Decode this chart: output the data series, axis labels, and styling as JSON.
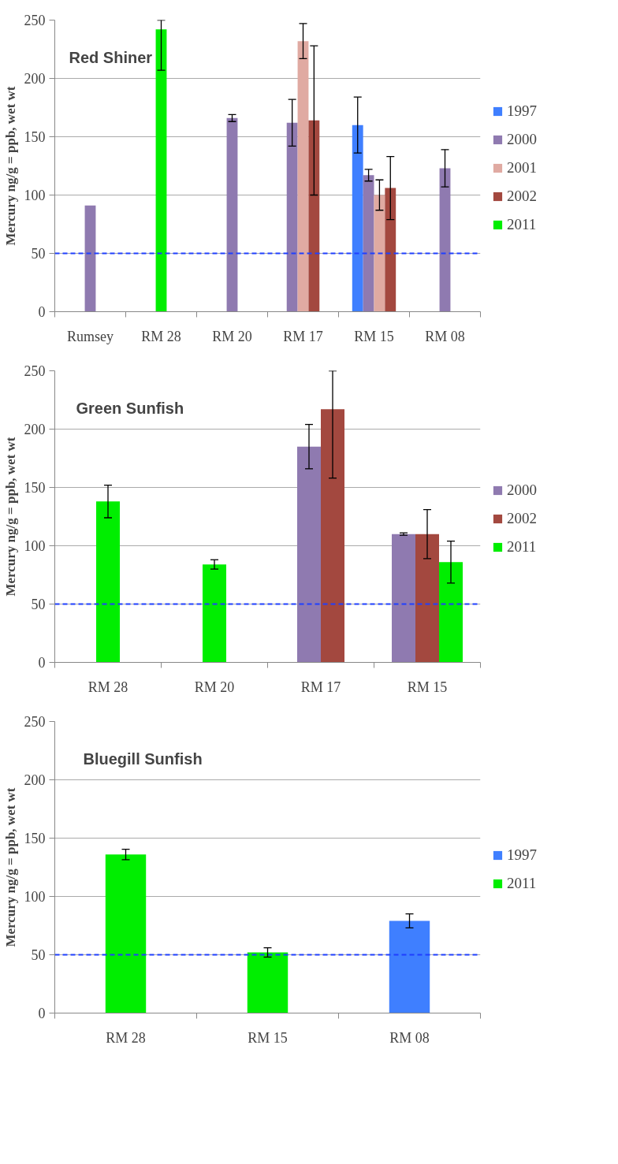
{
  "chart_data": [
    {
      "type": "bar",
      "title": "Red Shiner",
      "ylabel": "Mercury ng/g = ppb, wet wt",
      "categories": [
        "Rumsey",
        "RM 28",
        "RM 20",
        "RM 17",
        "RM 15",
        "RM 08"
      ],
      "series": [
        {
          "name": "1997",
          "color": "#3f7fff",
          "values": [
            null,
            null,
            null,
            null,
            160,
            null
          ],
          "errors": [
            null,
            null,
            null,
            null,
            24,
            null
          ]
        },
        {
          "name": "2000",
          "color": "#8f7ab0",
          "values": [
            91,
            null,
            166,
            162,
            117,
            123
          ],
          "errors": [
            null,
            null,
            3,
            20,
            5,
            16
          ]
        },
        {
          "name": "2001",
          "color": "#e0aaa2",
          "values": [
            null,
            null,
            null,
            232,
            100,
            null
          ],
          "errors": [
            null,
            null,
            null,
            15,
            13,
            null
          ]
        },
        {
          "name": "2002",
          "color": "#a3483f",
          "values": [
            null,
            null,
            null,
            164,
            106,
            null
          ],
          "errors": [
            null,
            null,
            null,
            64,
            27,
            null
          ]
        },
        {
          "name": "2011",
          "color": "#00ee00",
          "values": [
            null,
            242,
            null,
            null,
            null,
            null
          ],
          "errors": [
            null,
            [
              207,
              250
            ],
            null,
            null,
            null,
            null
          ]
        }
      ],
      "ylim": [
        0,
        250
      ],
      "yticks": [
        0,
        50,
        100,
        150,
        200,
        250
      ],
      "grid": "y",
      "legend": "right",
      "ref_lines": [
        {
          "axis": "y",
          "value": 50,
          "color": "#1f3fff",
          "line_style": "dashed"
        }
      ]
    },
    {
      "type": "bar",
      "title": "Green Sunfish",
      "ylabel": "Mercury ng/g = ppb, wet wt",
      "categories": [
        "RM 28",
        "RM 20",
        "RM 17",
        "RM 15"
      ],
      "series": [
        {
          "name": "2000",
          "color": "#8f7ab0",
          "values": [
            null,
            null,
            185,
            110
          ],
          "errors": [
            null,
            null,
            19,
            1
          ]
        },
        {
          "name": "2002",
          "color": "#a3483f",
          "values": [
            null,
            null,
            217,
            110
          ],
          "errors": [
            null,
            null,
            [
              158,
              250
            ],
            21
          ]
        },
        {
          "name": "2011",
          "color": "#00ee00",
          "values": [
            138,
            84,
            null,
            86
          ],
          "errors": [
            14,
            4,
            null,
            18
          ]
        }
      ],
      "ylim": [
        0,
        250
      ],
      "yticks": [
        0,
        50,
        100,
        150,
        200,
        250
      ],
      "grid": "y",
      "legend": "right",
      "ref_lines": [
        {
          "axis": "y",
          "value": 50,
          "color": "#1f3fff",
          "line_style": "dashed"
        }
      ]
    },
    {
      "type": "bar",
      "title": "Bluegill Sunfish",
      "ylabel": "Mercury ng/g = ppb, wet wt",
      "categories": [
        "RM 28",
        "RM 15",
        "RM 08"
      ],
      "series": [
        {
          "name": "1997",
          "color": "#3f7fff",
          "values": [
            null,
            null,
            79
          ],
          "errors": [
            null,
            null,
            6
          ]
        },
        {
          "name": "2011",
          "color": "#00ee00",
          "values": [
            136,
            52,
            null
          ],
          "errors": [
            4.5,
            4,
            null
          ]
        }
      ],
      "ylim": [
        0,
        250
      ],
      "yticks": [
        0,
        50,
        100,
        150,
        200,
        250
      ],
      "grid": "y",
      "legend": "right",
      "ref_lines": [
        {
          "axis": "y",
          "value": 50,
          "color": "#1f3fff",
          "line_style": "dashed"
        }
      ]
    }
  ]
}
